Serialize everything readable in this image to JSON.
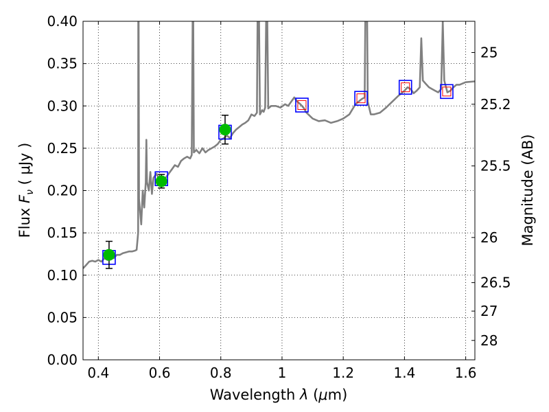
{
  "chart_data": {
    "type": "scatter",
    "title": "",
    "xlabel": "Wavelength  λ (μm)",
    "ylabel": "Flux  F_ν  ( μJy )",
    "ylabel_parts": {
      "text": "Flux",
      "symbol": "F",
      "subscript": "ν",
      "unit": "( μJy )"
    },
    "y2label": "Magnitude (AB)",
    "xlim": [
      0.35,
      1.63
    ],
    "ylim": [
      0.0,
      0.4
    ],
    "grid": true,
    "xticks": [
      0.4,
      0.6,
      0.8,
      1.0,
      1.2,
      1.4,
      1.6
    ],
    "xtick_labels": [
      "0.4",
      "0.6",
      "0.8",
      "1",
      "1.2",
      "1.4",
      "1.6"
    ],
    "yticks": [
      0.0,
      0.05,
      0.1,
      0.15,
      0.2,
      0.25,
      0.3,
      0.35,
      0.4
    ],
    "ytick_labels": [
      "0.00",
      "0.05",
      "0.10",
      "0.15",
      "0.20",
      "0.25",
      "0.30",
      "0.35",
      "0.40"
    ],
    "y2ticks": [
      {
        "mag": 25,
        "label": "25"
      },
      {
        "mag": 25.2,
        "label": "25.2"
      },
      {
        "mag": 25.5,
        "label": "25.5"
      },
      {
        "mag": 26,
        "label": "26"
      },
      {
        "mag": 26.5,
        "label": "26.5"
      },
      {
        "mag": 27,
        "label": "27"
      },
      {
        "mag": 28,
        "label": "28"
      }
    ],
    "colors": {
      "spectrum": "#808080",
      "observed": "#00bb00",
      "model_box": "#0000ff",
      "model_inner": "#ff0000",
      "errorbar": "#000000"
    },
    "series": [
      {
        "kind": "model_spectrum",
        "points": [
          [
            0.35,
            0.108
          ],
          [
            0.36,
            0.112
          ],
          [
            0.37,
            0.116
          ],
          [
            0.38,
            0.117
          ],
          [
            0.39,
            0.116
          ],
          [
            0.4,
            0.118
          ],
          [
            0.41,
            0.116
          ],
          [
            0.42,
            0.12
          ],
          [
            0.43,
            0.118
          ],
          [
            0.44,
            0.121
          ],
          [
            0.45,
            0.12
          ],
          [
            0.46,
            0.124
          ],
          [
            0.47,
            0.124
          ],
          [
            0.48,
            0.126
          ],
          [
            0.49,
            0.127
          ],
          [
            0.5,
            0.128
          ],
          [
            0.51,
            0.128
          ],
          [
            0.52,
            0.129
          ],
          [
            0.525,
            0.13
          ],
          [
            0.53,
            0.15
          ],
          [
            0.5305,
            0.4
          ],
          [
            0.5315,
            0.4
          ],
          [
            0.533,
            0.19
          ],
          [
            0.54,
            0.16
          ],
          [
            0.545,
            0.2
          ],
          [
            0.55,
            0.18
          ],
          [
            0.555,
            0.21
          ],
          [
            0.557,
            0.26
          ],
          [
            0.559,
            0.21
          ],
          [
            0.565,
            0.2
          ],
          [
            0.57,
            0.222
          ],
          [
            0.575,
            0.196
          ],
          [
            0.58,
            0.215
          ],
          [
            0.59,
            0.22
          ],
          [
            0.6,
            0.212
          ],
          [
            0.61,
            0.21
          ],
          [
            0.62,
            0.215
          ],
          [
            0.63,
            0.22
          ],
          [
            0.64,
            0.225
          ],
          [
            0.65,
            0.23
          ],
          [
            0.66,
            0.228
          ],
          [
            0.67,
            0.235
          ],
          [
            0.68,
            0.238
          ],
          [
            0.69,
            0.24
          ],
          [
            0.7,
            0.238
          ],
          [
            0.705,
            0.242
          ],
          [
            0.708,
            0.4
          ],
          [
            0.71,
            0.4
          ],
          [
            0.712,
            0.245
          ],
          [
            0.72,
            0.248
          ],
          [
            0.73,
            0.244
          ],
          [
            0.74,
            0.25
          ],
          [
            0.75,
            0.245
          ],
          [
            0.76,
            0.248
          ],
          [
            0.77,
            0.25
          ],
          [
            0.78,
            0.252
          ],
          [
            0.79,
            0.255
          ],
          [
            0.8,
            0.26
          ],
          [
            0.81,
            0.262
          ],
          [
            0.82,
            0.265
          ],
          [
            0.83,
            0.262
          ],
          [
            0.84,
            0.268
          ],
          [
            0.85,
            0.272
          ],
          [
            0.86,
            0.275
          ],
          [
            0.87,
            0.278
          ],
          [
            0.88,
            0.28
          ],
          [
            0.89,
            0.283
          ],
          [
            0.9,
            0.29
          ],
          [
            0.91,
            0.288
          ],
          [
            0.918,
            0.292
          ],
          [
            0.92,
            0.4
          ],
          [
            0.925,
            0.4
          ],
          [
            0.928,
            0.29
          ],
          [
            0.935,
            0.295
          ],
          [
            0.94,
            0.293
          ],
          [
            0.945,
            0.298
          ],
          [
            0.948,
            0.4
          ],
          [
            0.952,
            0.4
          ],
          [
            0.955,
            0.297
          ],
          [
            0.965,
            0.3
          ],
          [
            0.98,
            0.3
          ],
          [
            0.995,
            0.298
          ],
          [
            1.01,
            0.302
          ],
          [
            1.02,
            0.3
          ],
          [
            1.03,
            0.305
          ],
          [
            1.04,
            0.31
          ],
          [
            1.05,
            0.305
          ],
          [
            1.06,
            0.302
          ],
          [
            1.07,
            0.298
          ],
          [
            1.08,
            0.292
          ],
          [
            1.1,
            0.285
          ],
          [
            1.12,
            0.282
          ],
          [
            1.14,
            0.283
          ],
          [
            1.16,
            0.28
          ],
          [
            1.18,
            0.282
          ],
          [
            1.2,
            0.285
          ],
          [
            1.22,
            0.29
          ],
          [
            1.24,
            0.302
          ],
          [
            1.26,
            0.308
          ],
          [
            1.27,
            0.31
          ],
          [
            1.272,
            0.4
          ],
          [
            1.278,
            0.4
          ],
          [
            1.28,
            0.305
          ],
          [
            1.29,
            0.29
          ],
          [
            1.3,
            0.29
          ],
          [
            1.32,
            0.292
          ],
          [
            1.34,
            0.298
          ],
          [
            1.36,
            0.305
          ],
          [
            1.38,
            0.312
          ],
          [
            1.4,
            0.318
          ],
          [
            1.41,
            0.322
          ],
          [
            1.42,
            0.32
          ],
          [
            1.43,
            0.315
          ],
          [
            1.44,
            0.318
          ],
          [
            1.45,
            0.322
          ],
          [
            1.455,
            0.38
          ],
          [
            1.46,
            0.33
          ],
          [
            1.47,
            0.326
          ],
          [
            1.48,
            0.322
          ],
          [
            1.49,
            0.32
          ],
          [
            1.5,
            0.318
          ],
          [
            1.51,
            0.316
          ],
          [
            1.52,
            0.32
          ],
          [
            1.525,
            0.4
          ],
          [
            1.53,
            0.33
          ],
          [
            1.54,
            0.316
          ],
          [
            1.55,
            0.318
          ],
          [
            1.56,
            0.322
          ],
          [
            1.57,
            0.325
          ],
          [
            1.58,
            0.325
          ],
          [
            1.6,
            0.328
          ],
          [
            1.63,
            0.329
          ]
        ]
      },
      {
        "kind": "observed",
        "points": [
          {
            "x": 0.435,
            "y": 0.124,
            "yerr": 0.016
          },
          {
            "x": 0.606,
            "y": 0.211,
            "yerr": 0.008
          },
          {
            "x": 0.814,
            "y": 0.272,
            "yerr": 0.017
          }
        ]
      },
      {
        "kind": "model_photometry",
        "points": [
          {
            "x": 0.435,
            "y": 0.121,
            "inner": false
          },
          {
            "x": 0.606,
            "y": 0.214,
            "inner": false
          },
          {
            "x": 0.814,
            "y": 0.269,
            "inner": false
          },
          {
            "x": 1.065,
            "y": 0.301,
            "inner": true
          },
          {
            "x": 1.258,
            "y": 0.309,
            "inner": true
          },
          {
            "x": 1.403,
            "y": 0.322,
            "inner": true
          },
          {
            "x": 1.538,
            "y": 0.317,
            "inner": true
          }
        ]
      }
    ]
  }
}
